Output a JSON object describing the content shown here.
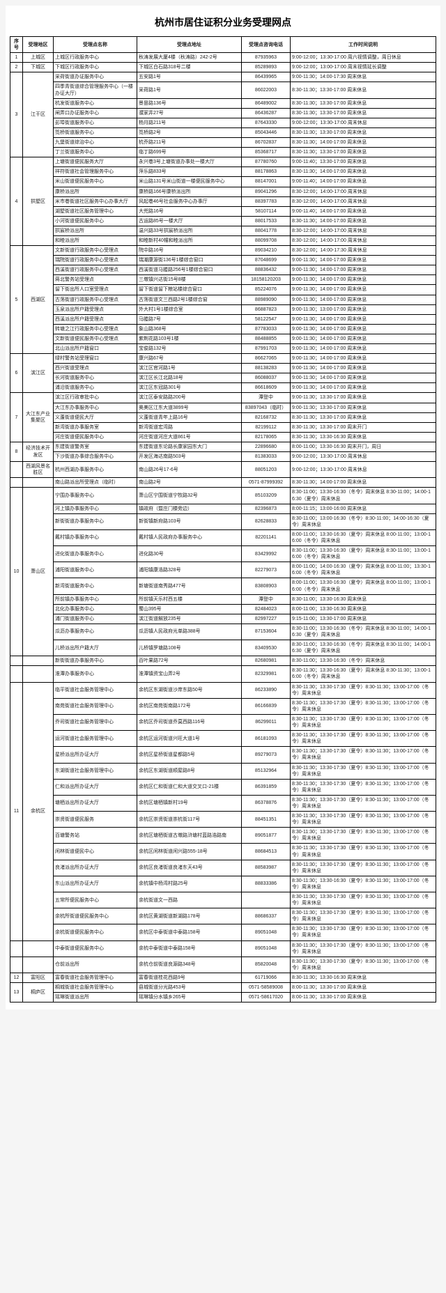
{
  "title": "杭州市居住证积分业务受理网点",
  "headers": [
    "序号",
    "受理地区",
    "受理点名称",
    "受理点地址",
    "受理点咨询电话",
    "工作时间说明"
  ],
  "rows": [
    {
      "seq": "1",
      "area": "上城区",
      "name": "上城区行政服务中心",
      "addr": "秋涛发展大厦4楼（秋涛路）242-2号",
      "phone": "87935963",
      "time": "9:00-12:00；13:30-17:00 周六视情调整，周日休息",
      "arearows": 1
    },
    {
      "seq": "2",
      "area": "下城区",
      "name": "下城区行政服务中心",
      "addr": "下城区白石路318号二楼",
      "phone": "85289893",
      "time": "9:00-12:00；13:00-17:00 周末视情延长调整",
      "arearows": 1
    },
    {
      "seq": "3",
      "area": "江干区",
      "name": "采荷街道办证服务中心",
      "addr": "五安路1号",
      "phone": "86439965",
      "time": "9:00-11:30；14:00-17:30 周末休息",
      "arearows": 8
    },
    {
      "name": "四季青街道综合管理服务中心（一楼办证大厅）",
      "addr": "采荷路1号",
      "phone": "86022003",
      "time": "8:30-11:30；13:30-17:00 周末休息"
    },
    {
      "name": "杭发街道服务中心",
      "addr": "景昙路136号",
      "phone": "86489002",
      "time": "8:30-11:30；13:30-17:00 周末休息"
    },
    {
      "name": "闸弄口办证服务中心",
      "addr": "濮家井27号",
      "phone": "86436287",
      "time": "8:30-11:30；13:30-17:00 周末休息"
    },
    {
      "name": "彭埠街道服务中心",
      "addr": "杨月路211号",
      "phone": "87643330",
      "time": "9:00-12:00；13:30-17:00 周末休息"
    },
    {
      "name": "笕桥街道服务中心",
      "addr": "笕桥路2号",
      "phone": "85043446",
      "time": "8:30-11:30；13:30-17:00 周末休息"
    },
    {
      "name": "九堡街道综治中心",
      "addr": "杭乔路211号",
      "phone": "86702837",
      "time": "8:30-11:30；14:00-17:00 周末休息"
    },
    {
      "name": "丁兰街道服务中心",
      "addr": "临丁路699号",
      "phone": "85368717",
      "time": "8:30-11:30；13:30-17:00 周末休息"
    },
    {
      "seq": "4",
      "area": "拱墅区",
      "name": "上塘街道便民服务大厅",
      "addr": "永兴巷3号上塘街道办事处一楼大厅",
      "phone": "87780760",
      "time": "9:00-11:40；13:30-17:00 周末休息",
      "arearows": 9
    },
    {
      "name": "祥符街道社会管理服务中心",
      "addr": "萍乐路833号",
      "phone": "88178863",
      "time": "8:30-11:30；14:00-17:00 周末休息"
    },
    {
      "name": "米山街道便民服务中心",
      "addr": "米山路131号米山街道一楼便民服务中心",
      "phone": "88147001",
      "time": "9:00-11:40；14:00-17:00 周末休息"
    },
    {
      "name": "康桥派出所",
      "addr": "康桥路166号康桥派出所",
      "phone": "89041296",
      "time": "8:30-12:00；14:00-17:00 周末休息"
    },
    {
      "name": "米市巷街道社区服务中心办事大厅",
      "addr": "风起巷46号社会服务中心办事厅",
      "phone": "88397783",
      "time": "8:30-12:00；14:00-17:00 周末休息"
    },
    {
      "name": "湖墅街道社区服务管理中心",
      "addr": "大兜路16号",
      "phone": "58107114",
      "time": "9:00-11:40；14:00-17:00 周末休息"
    },
    {
      "name": "小河街道便民服务中心",
      "addr": "古运路85号一楼大厅",
      "phone": "88017533",
      "time": "8:30-11:30；14:00-17:00 周末休息"
    },
    {
      "name": "拱宸桥派出所",
      "addr": "温兴路33号拱宸桥派出所",
      "phone": "88041778",
      "time": "8:30-12:00；14:00-17:00 周末休息"
    },
    {
      "name": "和睦派出所",
      "addr": "和睦新村40幢和睦派出所",
      "phone": "88099708",
      "time": "8:30-12:00；14:00-17:00 周末休息"
    },
    {
      "seq": "5",
      "area": "西湖区",
      "name": "文新街道行政服务中心受理点",
      "addr": "院中路16号",
      "phone": "89034210",
      "time": "8:30-12:00；14:00-17:30 周末休息",
      "arearows": 11
    },
    {
      "name": "瑞院街道行政服务中心受理点",
      "addr": "瑞潮康源街136号1楼综合窗口",
      "phone": "87048699",
      "time": "9:00-11:30；14:00-17:00 周末休息"
    },
    {
      "name": "西溪街道行政服务中心受理点",
      "addr": "西溪街道马塍路256号1楼综合窗口",
      "phone": "88836432",
      "time": "9:00-11:30；14:00-17:00 周末休息"
    },
    {
      "name": "蒋北警务站受理点",
      "addr": "三墩镇兴达街15号8楼",
      "phone": "18158120203",
      "time": "9:00-11:30；14:00-17:00 周末休息"
    },
    {
      "name": "留下街出所人口室受理点",
      "addr": "留下街道留下粮站楼综合窗口",
      "phone": "85224076",
      "time": "9:00-11:30；14:00-17:00 周末休息"
    },
    {
      "name": "古荡街道行政服务中心受理点",
      "addr": "古荡街道文三西路2号1楼综合窗",
      "phone": "88989090",
      "time": "9:00-11:30；14:00-17:00 周末休息"
    },
    {
      "name": "玉泉派出所户籍受理点",
      "addr": "外大村1号1楼综合室",
      "phone": "86887823",
      "time": "9:00-11:30；13:00-17:00 周末休息"
    },
    {
      "name": "西溪派出所户籍受理点",
      "addr": "马塍路7号",
      "phone": "58122547",
      "time": "9:00-11:30；14:00-17:00 周末休息"
    },
    {
      "name": "转塘之江行政服务中心受理点",
      "addr": "象山路368号",
      "phone": "87783033",
      "time": "9:00-11:30；14:00-17:00 周末休息"
    },
    {
      "name": "文新街道便民服务中心受理点",
      "addr": "紫荆花路103号1楼",
      "phone": "88488855",
      "time": "9:00-11:30；14:00-17:00 周末休息"
    },
    {
      "name": "北山派出所户籍窗口",
      "addr": "宝俊路132号",
      "phone": "87991703",
      "time": "9:00-11:30；14:00-17:00 周末休息"
    },
    {
      "seq": "6",
      "area": "滨江区",
      "name": "绿村警务站受理窗口",
      "addr": "康兴路67号",
      "phone": "86627065",
      "time": "9:00-11:30；14:00-17:00 周末休息",
      "arearows": 4
    },
    {
      "name": "西兴街道受理点",
      "addr": "滨江区官河路1号",
      "phone": "88138283",
      "time": "9:00-11:30；14:00-17:00 周末休息"
    },
    {
      "name": "长河街道服务中心",
      "addr": "滨江区长江北路18号",
      "phone": "86088037",
      "time": "9:00-11:30；14:00-17:00 周末休息"
    },
    {
      "name": "浦沿街道服务中心",
      "addr": "滨江区东冠路301号",
      "phone": "86618609",
      "time": "9:00-11:30；14:00-17:00 周末休息"
    },
    {
      "seq": "7",
      "area": "大江东产业集聚区",
      "name": "滨江区行政审批中心",
      "addr": "滨江区泰安路路200号",
      "phone": "潭登中",
      "time": "9:00-11:30；13:30-17:00 周末休息",
      "arearows": 5
    },
    {
      "name": "大江东办事服务中心",
      "addr": "奥美区江东大道3899号",
      "phone": "83897043（临时）",
      "time": "9:00-11:30；13:30-17:00 周末休息"
    },
    {
      "name": "义蓬街道便民大厅",
      "addr": "义蓬街道青年上路16号",
      "phone": "82168732",
      "time": "8:30-11:30；13:30-17:00 周末休息"
    },
    {
      "name": "新湾街道办事服务室",
      "addr": "新湾街道宏湾路",
      "phone": "82199112",
      "time": "8:30-11:30；13:30-17:00 周末开门"
    },
    {
      "name": "河庄街道便民服务中心",
      "addr": "河庄街道河庄大道861号",
      "phone": "82178065",
      "time": "8:30-11:30；13:30-16:30 周末休息"
    },
    {
      "seq": "8",
      "area": "经济技术开发区",
      "name": "东建街道警务室",
      "addr": "东建街道东论路长康家园东大门",
      "phone": "22896680",
      "time": "8:00-11:00；13:30-16:30 周末开门，周日",
      "arearows": 2
    },
    {
      "name": "下沙街道办事综合服务中心",
      "addr": "开发区海达南路503号",
      "phone": "81383033",
      "time": "9:00-12:00；13:30-17:00 周末休息"
    },
    {
      "seq": "",
      "area": "西湖风景名胜区",
      "name": "杭州西湖办事服务中心",
      "addr": "南山路26号17-6号",
      "phone": "88051203",
      "time": "9:00-12:00；13:30-17:00 周末休息",
      "arearows": 1
    },
    {
      "seq": "",
      "area": "",
      "name": "南山路派出所受理点（临时）",
      "addr": "南山路2号",
      "phone": "0571-87999392",
      "time": "8:30-11:30；14:00-17:00 周末休息"
    },
    {
      "seq": "10",
      "area": "萧山区",
      "name": "宁围办事服务中心",
      "addr": "萧山区宁围街道宁牧路32号",
      "phone": "85103209",
      "time": "8:30-11:00；13:30-16:30（冬令）周末休息 8:30-11:00；14:00-16:30（夏令）周末休息",
      "arearows": 12
    },
    {
      "name": "河上镇办事服务中心",
      "addr": "镇政府（暨庄门楼旁边）",
      "phone": "82396873",
      "time": "8:00-11:15；13:00-16:00 周末休息"
    },
    {
      "name": "新街街道办事服务中心",
      "addr": "新街镇新府路103号",
      "phone": "82628833",
      "time": "8:30-11:00；13:00-16:30（冬令）8:30-11:00；14:00-16:30（夏令）周末休息"
    },
    {
      "name": "戴村镇办事服务中心",
      "addr": "戴村镇人民政府办事服务中心",
      "phone": "82201141",
      "time": "8:00-11:00；13:30-16:30（夏令）周末休息 8:00-11:00；13:00-16:00（冬令）周末休息"
    },
    {
      "name": "进化街道办事服务中心",
      "addr": "进化路30号",
      "phone": "83429992",
      "time": "8:30-11:00；13:30-16:30（夏令）周末休息 8:30-11:00；13:00-16:00（冬令）周末休息"
    },
    {
      "name": "浦阳街道服务中心",
      "addr": "浦阳镇康浩路328号",
      "phone": "82279073",
      "time": "8:00-11:00；14:00-16:30（夏令）周末休息 8:00-11:00；13:30-16:00（冬令）周末休息"
    },
    {
      "name": "新湾街道服务中心",
      "addr": "新塘街道南秀路477号",
      "phone": "83808903",
      "time": "8:00-11:00；13:30-16:30（夏令）周末休息 8:00-11:00；13:00-16:00（冬令）周末休息"
    },
    {
      "name": "所前镇办事服务中心",
      "addr": "所前镇天乐村西五楼",
      "phone": "潭登中",
      "time": "8:30-11:00；13:30-16:30 周末休息"
    },
    {
      "name": "北化办事服务中心",
      "addr": "蜀山395号",
      "phone": "82484023",
      "time": "8:00-11:00；13:30-16:30 周末休息"
    },
    {
      "name": "浦门街道服务中心",
      "addr": "滨江街道解放235号",
      "phone": "82997227",
      "time": "9:15-11:00；13:30-17:00 周末休息"
    },
    {
      "name": "瓜沥办事服务中心",
      "addr": "瓜沥镇人民政府光单路388号",
      "phone": "87153604",
      "time": "8:30-11:00；13:30-16:30（冬令）周末休息 8:30-11:00；14:00-16:30（夏令）周末休息"
    },
    {
      "name": "儿桥派出所户籍大厅",
      "addr": "儿桥镇罗塘路108号",
      "phone": "83409530",
      "time": "8:30-11:00；13:30-16:30（冬令）周末休息 8:30-11:00；14:00-16:30（夏令）周末休息"
    },
    {
      "seq": "",
      "area": "",
      "name": "新街街道办事服务中心",
      "addr": "百叶果路72号",
      "phone": "82680981",
      "time": "8:30-11:00；13:30-16:30（冬令）周末休息"
    },
    {
      "seq": "",
      "area": "",
      "name": "淮潭办事服务中心",
      "addr": "淮潭镇资宝山弄2号",
      "phone": "82329981",
      "time": "8:30-11:30；13:30-16:30（夏令）周末休息 8:30-11:30；13:00-16:00（冬令）周末休息"
    },
    {
      "seq": "11",
      "area": "余杭区",
      "name": "临平街道社会服务管理中心",
      "addr": "余杭区东湖街道沙岸东路50号",
      "phone": "86233890",
      "time": "8:30-11:30；13:30-17:30（夏令）8:30-11:30；13:00-17:00（冬令）周末休息",
      "arearows": 16
    },
    {
      "name": "南苑街道社会服务管理中心",
      "addr": "余杭区南苑街南路172号",
      "phone": "86166839",
      "time": "8:30-11:30；13:30-17:30（夏令）8:30-11:30；13:00-17:00（冬令）周末休息"
    },
    {
      "name": "乔司街道社会服务管理中心",
      "addr": "余杭区乔司街道乔莫西路116号",
      "phone": "86299011",
      "time": "8:30-11:30；13:30-17:30（夏令）8:30-11:30；13:00-17:00（冬令）周末休息"
    },
    {
      "name": "运河街道社会服务管理中心",
      "addr": "余杭区运河街道兴旺大道1号",
      "phone": "86181093",
      "time": "8:30-11:30；13:30-17:30（夏令）8:30-11:30；13:00-17:00（冬令）周末休息"
    },
    {
      "name": "星桥派出所办证大厅",
      "addr": "余杭区星桥街道星都路5号",
      "phone": "89279073",
      "time": "8:30-11:30；13:30-17:30（夏令）8:30-11:30；13:00-17:00（冬令）周末休息"
    },
    {
      "name": "东湖街道社会服务管理中心",
      "addr": "余杭区东湖街道顺屋路8号",
      "phone": "85132964",
      "time": "8:30-11:30；13:30-17:30（夏令）8:30-11:30；13:00-17:00（冬令）周末休息"
    },
    {
      "name": "仁和派出所办证大厅",
      "addr": "余杭区仁和街道仁和大道交叉口-21楼",
      "phone": "86391859",
      "time": "8:30-11:30；13:30-17:30（夏令）8:30-11:30；13:00-17:00（冬令）周末休息"
    },
    {
      "name": "塘栖派出所办证大厅",
      "addr": "余杭区塘栖镇新村19号",
      "phone": "86378876",
      "time": "8:30-11:30；13:30-17:30（夏令）8:30-11:30；13:00-17:00（冬令）周末休息"
    },
    {
      "name": "崇贤街道便民服务",
      "addr": "余杭区崇贤街道崇杭街117号",
      "phone": "88451351",
      "time": "8:30-11:30；13:30-17:30（夏令）8:30-11:30；13:00-17:00（冬令）周末休息"
    },
    {
      "name": "百塘警务站",
      "addr": "余杭区塘栖街道古墩路浒塘村蓝路浩路南",
      "phone": "89051877",
      "time": "8:30-11:30；13:30-17:30（夏令）8:30-11:30；13:00-17:00（冬令）周末休息"
    },
    {
      "name": "闲林街道便民中心",
      "addr": "余杭区闲林街道闲兴路555-18号",
      "phone": "88684513",
      "time": "8:30-11:30；13:30-17:30（夏令）8:30-11:30；13:00-17:00（冬令）周末休息"
    },
    {
      "name": "良渚派出所办证大厅",
      "addr": "余杭区良渚街道良渚东天43号",
      "phone": "88583987",
      "time": "8:30-11:30；13:30-17:30（夏令）8:30-11:30；13:00-17:00（冬令）周末休息"
    },
    {
      "name": "东山派出所办证大厅",
      "addr": "余杭镇中杨湾村路25号",
      "phone": "88833386",
      "time": "8:30-11:30；13:30-16:30（夏令）8:30-11:30；13:00-17:00（冬令）周末休息"
    },
    {
      "name": "五常所便民服务中心",
      "addr": "余杭街道文一西路",
      "phone": "",
      "time": "8:30-11:30；13:30-17:30（夏令）8:30-11:30；13:00-17:00（冬令）周末休息"
    },
    {
      "name": "余杭所街道便民服务中心",
      "addr": "余杭区黄湖街道新湖路178号",
      "phone": "88686337",
      "time": "8:30-11:30；13:30-17:30（夏令）8:30-11:30；13:00-17:00（冬令）周末休息"
    },
    {
      "name": "余杭街道便民服务中心",
      "addr": "余杭区中泰街道中泰路158号",
      "phone": "89051048",
      "time": "8:30-11:30；13:30-17:30（夏令）8:30-11:30；13:00-17:00（冬令）周末休息"
    },
    {
      "seq": "",
      "area": "",
      "name": "中泰街道便民服务中心",
      "addr": "余杭中泰街道中泰路158号",
      "phone": "89051048",
      "time": "8:30-11:30；13:30-17:30（夏令）8:30-11:30；13:00-17:00（冬令）周末休息"
    },
    {
      "seq": "",
      "area": "",
      "name": "仓前派出所",
      "addr": "余杭仓前街道良源路348号",
      "phone": "85820048",
      "time": "8:30-11:30；13:30-17:30（夏令）8:30-11:30；13:00-17:00（冬令）周末休息"
    },
    {
      "seq": "12",
      "area": "富阳区",
      "name": "富春街道社会服务管理中心",
      "addr": "富春街道桂花西路9号",
      "phone": "61719066",
      "time": "8:30-11:30；13:30-16:30 周末休息",
      "arearows": 1
    },
    {
      "seq": "13",
      "area": "桐庐区",
      "name": "桐城街道社会服务管理中心",
      "addr": "县城街道分光路453号",
      "phone": "0571-58589008",
      "time": "8:00-11:30；13:30-17:00 周末休息",
      "arearows": 2
    },
    {
      "name": "瑶琳街道派出所",
      "addr": "瑶琳镇分水镇乡265号",
      "phone": "0571-58617020",
      "time": "8:00-11:30；13:30-17:00 周末休息"
    }
  ]
}
